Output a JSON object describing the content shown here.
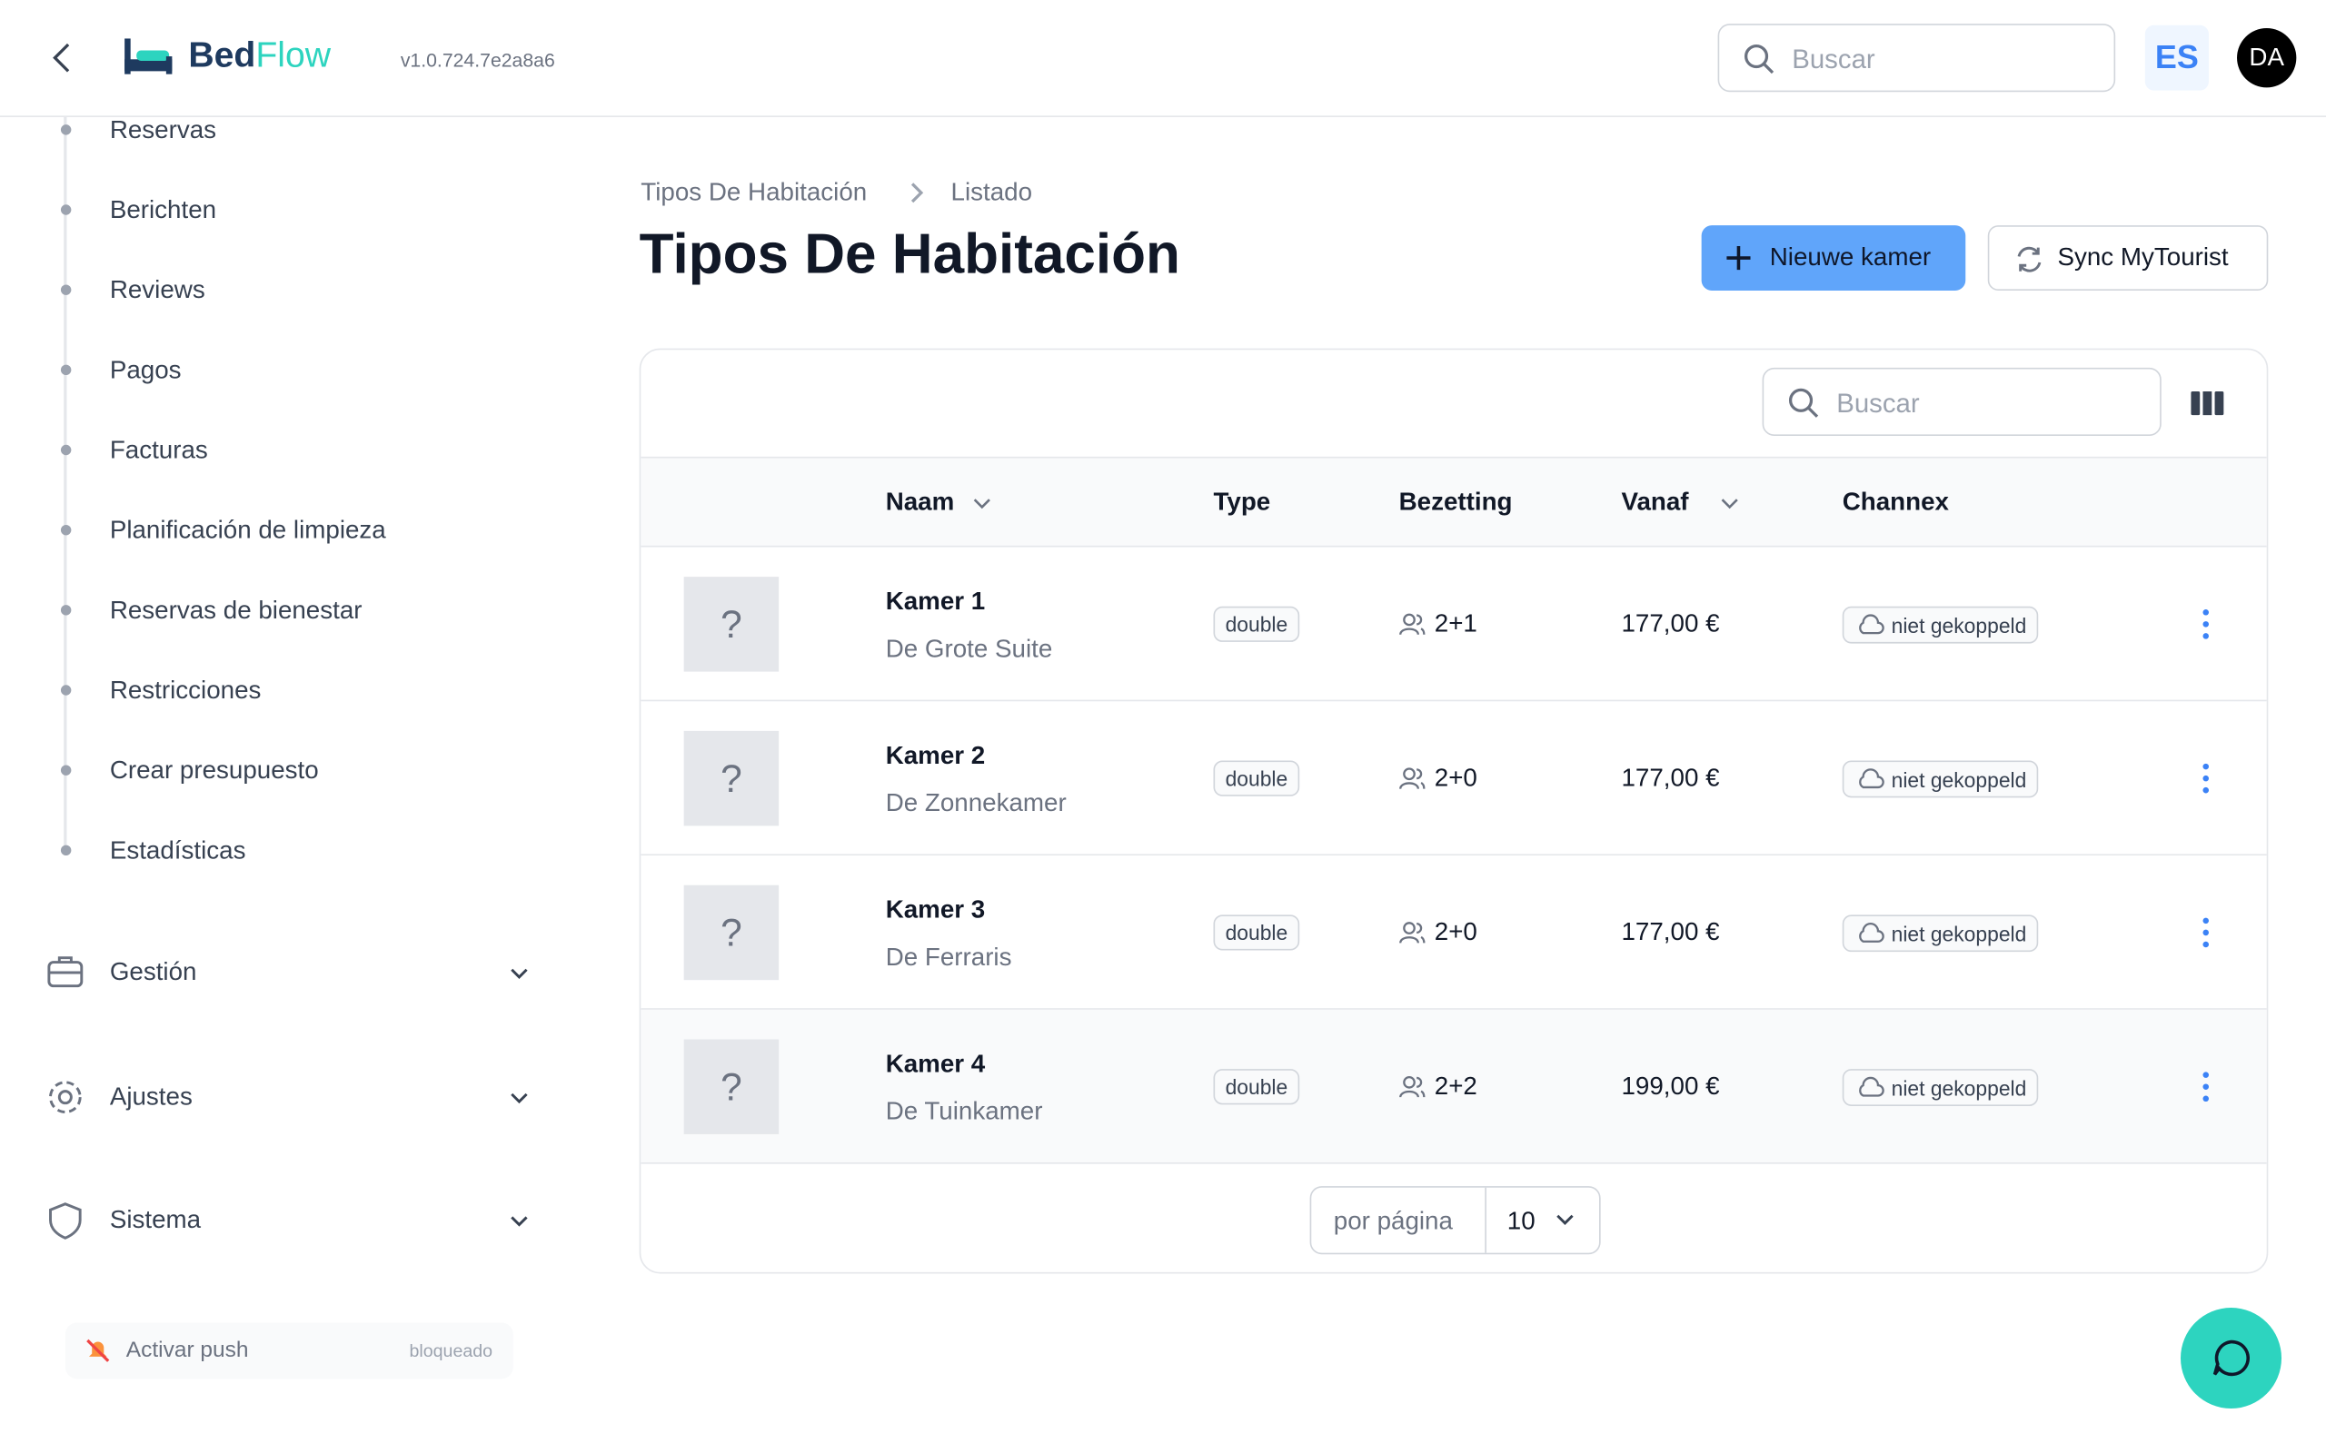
{
  "header": {
    "brand": {
      "first": "Bed",
      "second": "Flow"
    },
    "version": "v1.0.724.7e2a8a6",
    "search_placeholder": "Buscar",
    "language": "ES",
    "avatar": "DA"
  },
  "sidebar": {
    "items": [
      "Reservas",
      "Berichten",
      "Reviews",
      "Pagos",
      "Facturas",
      "Planificación de limpieza",
      "Reservas de bienestar",
      "Restricciones",
      "Crear presupuesto",
      "Estadísticas"
    ],
    "groups": [
      "Gestión",
      "Ajustes",
      "Sistema"
    ],
    "push": {
      "label": "Activar push",
      "status": "bloqueado"
    }
  },
  "breadcrumb": [
    "Tipos De Habitación",
    "Listado"
  ],
  "title": "Tipos De Habitación",
  "buttons": {
    "new": "Nieuwe kamer",
    "sync": "Sync MyTourist"
  },
  "table": {
    "search_placeholder": "Buscar",
    "columns": [
      "Naam",
      "Type",
      "Bezetting",
      "Vanaf",
      "Channex"
    ],
    "rows": [
      {
        "image": "?",
        "name": "Kamer 1",
        "subtitle": "De Grote Suite",
        "type": "double",
        "occupancy": "2+1",
        "price": "177,00 €",
        "channex": "niet gekoppeld"
      },
      {
        "image": "?",
        "name": "Kamer 2",
        "subtitle": "De Zonnekamer",
        "type": "double",
        "occupancy": "2+0",
        "price": "177,00 €",
        "channex": "niet gekoppeld"
      },
      {
        "image": "?",
        "name": "Kamer 3",
        "subtitle": "De Ferraris",
        "type": "double",
        "occupancy": "2+0",
        "price": "177,00 €",
        "channex": "niet gekoppeld"
      },
      {
        "image": "?",
        "name": "Kamer 4",
        "subtitle": "De Tuinkamer",
        "type": "double",
        "occupancy": "2+2",
        "price": "199,00 €",
        "channex": "niet gekoppeld"
      }
    ]
  },
  "pagination": {
    "label": "por página",
    "value": "10"
  }
}
